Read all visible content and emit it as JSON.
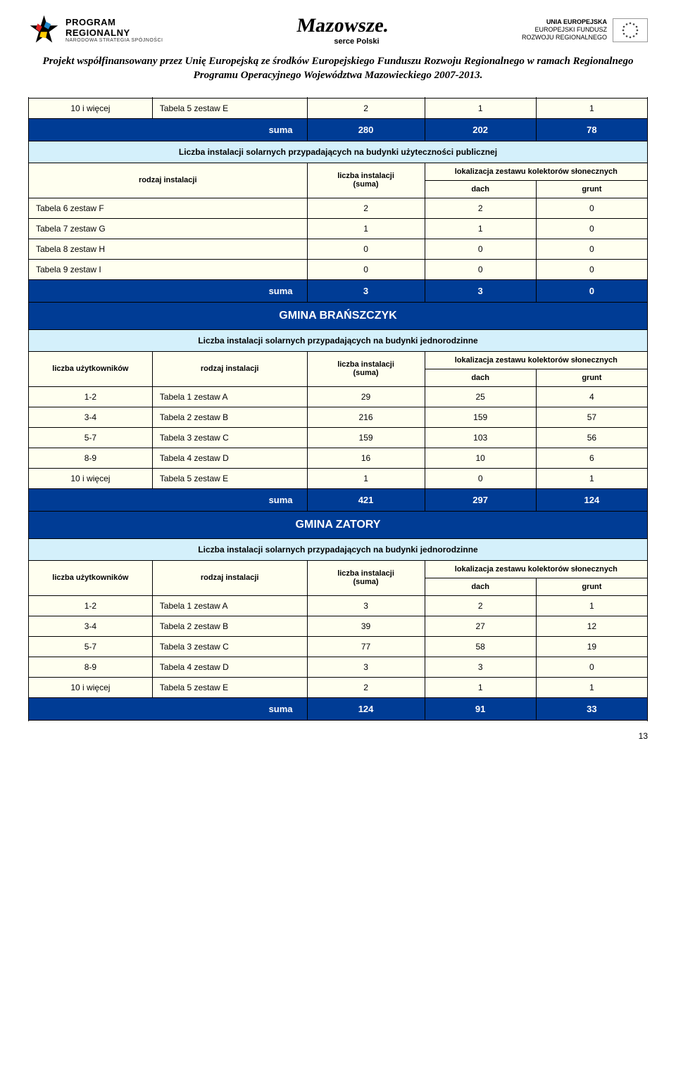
{
  "header": {
    "program": {
      "line1": "PROGRAM",
      "line2": "REGIONALNY",
      "line3": "NARODOWA STRATEGIA SPÓJNOŚCI"
    },
    "mazowsze": {
      "name": "Mazowsze.",
      "sub": "serce Polski"
    },
    "eu": {
      "line1": "UNIA EUROPEJSKA",
      "line2": "EUROPEJSKI FUNDUSZ",
      "line3": "ROZWOJU REGIONALNEGO"
    }
  },
  "project_desc": "Projekt współfinansowany przez Unię Europejską ze środków Europejskiego Funduszu Rozwoju Regionalnego w ramach Regionalnego Programu Operacyjnego Województwa Mazowieckiego 2007-2013.",
  "labels": {
    "suma": "suma",
    "rodzaj": "rodzaj instalacji",
    "uzytk": "liczba użytkowników",
    "liczba_inst": "liczba instalacji",
    "liczba_inst_suma": "(suma)",
    "lokalizacja": "lokalizacja zestawu kolektorów słonecznych",
    "dach": "dach",
    "grunt": "grunt",
    "publiczne": "Liczba instalacji solarnych przypadających na budynki użyteczności publicznej",
    "jednorodzinne": "Liczba instalacji solarnych przypadających na budynki jednorodzinne"
  },
  "top_row": {
    "c1": "10 i więcej",
    "c2": "Tabela 5 zestaw E",
    "c3": "2",
    "c4": "1",
    "c5": "1"
  },
  "sum1": {
    "v1": "280",
    "v2": "202",
    "v3": "78"
  },
  "pub_header_cols": [
    "rodzaj instalacji"
  ],
  "pub_rows": [
    {
      "name": "Tabela 6 zestaw F",
      "suma": "2",
      "dach": "2",
      "grunt": "0"
    },
    {
      "name": "Tabela 7 zestaw G",
      "suma": "1",
      "dach": "1",
      "grunt": "0"
    },
    {
      "name": "Tabela 8  zestaw H",
      "suma": "0",
      "dach": "0",
      "grunt": "0"
    },
    {
      "name": "Tabela 9 zestaw I",
      "suma": "0",
      "dach": "0",
      "grunt": "0"
    }
  ],
  "sum2": {
    "v1": "3",
    "v2": "3",
    "v3": "0"
  },
  "gmina1": "GMINA BRAŃSZCZYK",
  "gm1_rows": [
    {
      "u": "1-2",
      "name": "Tabela 1 zestaw A",
      "suma": "29",
      "dach": "25",
      "grunt": "4"
    },
    {
      "u": "3-4",
      "name": "Tabela 2 zestaw B",
      "suma": "216",
      "dach": "159",
      "grunt": "57"
    },
    {
      "u": "5-7",
      "name": "Tabela 3 zestaw C",
      "suma": "159",
      "dach": "103",
      "grunt": "56"
    },
    {
      "u": "8-9",
      "name": "Tabela 4 zestaw D",
      "suma": "16",
      "dach": "10",
      "grunt": "6"
    },
    {
      "u": "10 i więcej",
      "name": "Tabela 5 zestaw E",
      "suma": "1",
      "dach": "0",
      "grunt": "1"
    }
  ],
  "sum3": {
    "v1": "421",
    "v2": "297",
    "v3": "124"
  },
  "gmina2": "GMINA ZATORY",
  "gm2_rows": [
    {
      "u": "1-2",
      "name": "Tabela 1 zestaw A",
      "suma": "3",
      "dach": "2",
      "grunt": "1"
    },
    {
      "u": "3-4",
      "name": "Tabela 2 zestaw B",
      "suma": "39",
      "dach": "27",
      "grunt": "12"
    },
    {
      "u": "5-7",
      "name": "Tabela 3 zestaw C",
      "suma": "77",
      "dach": "58",
      "grunt": "19"
    },
    {
      "u": "8-9",
      "name": "Tabela 4 zestaw D",
      "suma": "3",
      "dach": "3",
      "grunt": "0"
    },
    {
      "u": "10 i więcej",
      "name": "Tabela 5 zestaw E",
      "suma": "2",
      "dach": "1",
      "grunt": "1"
    }
  ],
  "sum4": {
    "v1": "124",
    "v2": "91",
    "v3": "33"
  },
  "page_num": "13",
  "colors": {
    "blue": "#003c95",
    "lightblue": "#d4f0fb",
    "cream": "#fffff0"
  }
}
